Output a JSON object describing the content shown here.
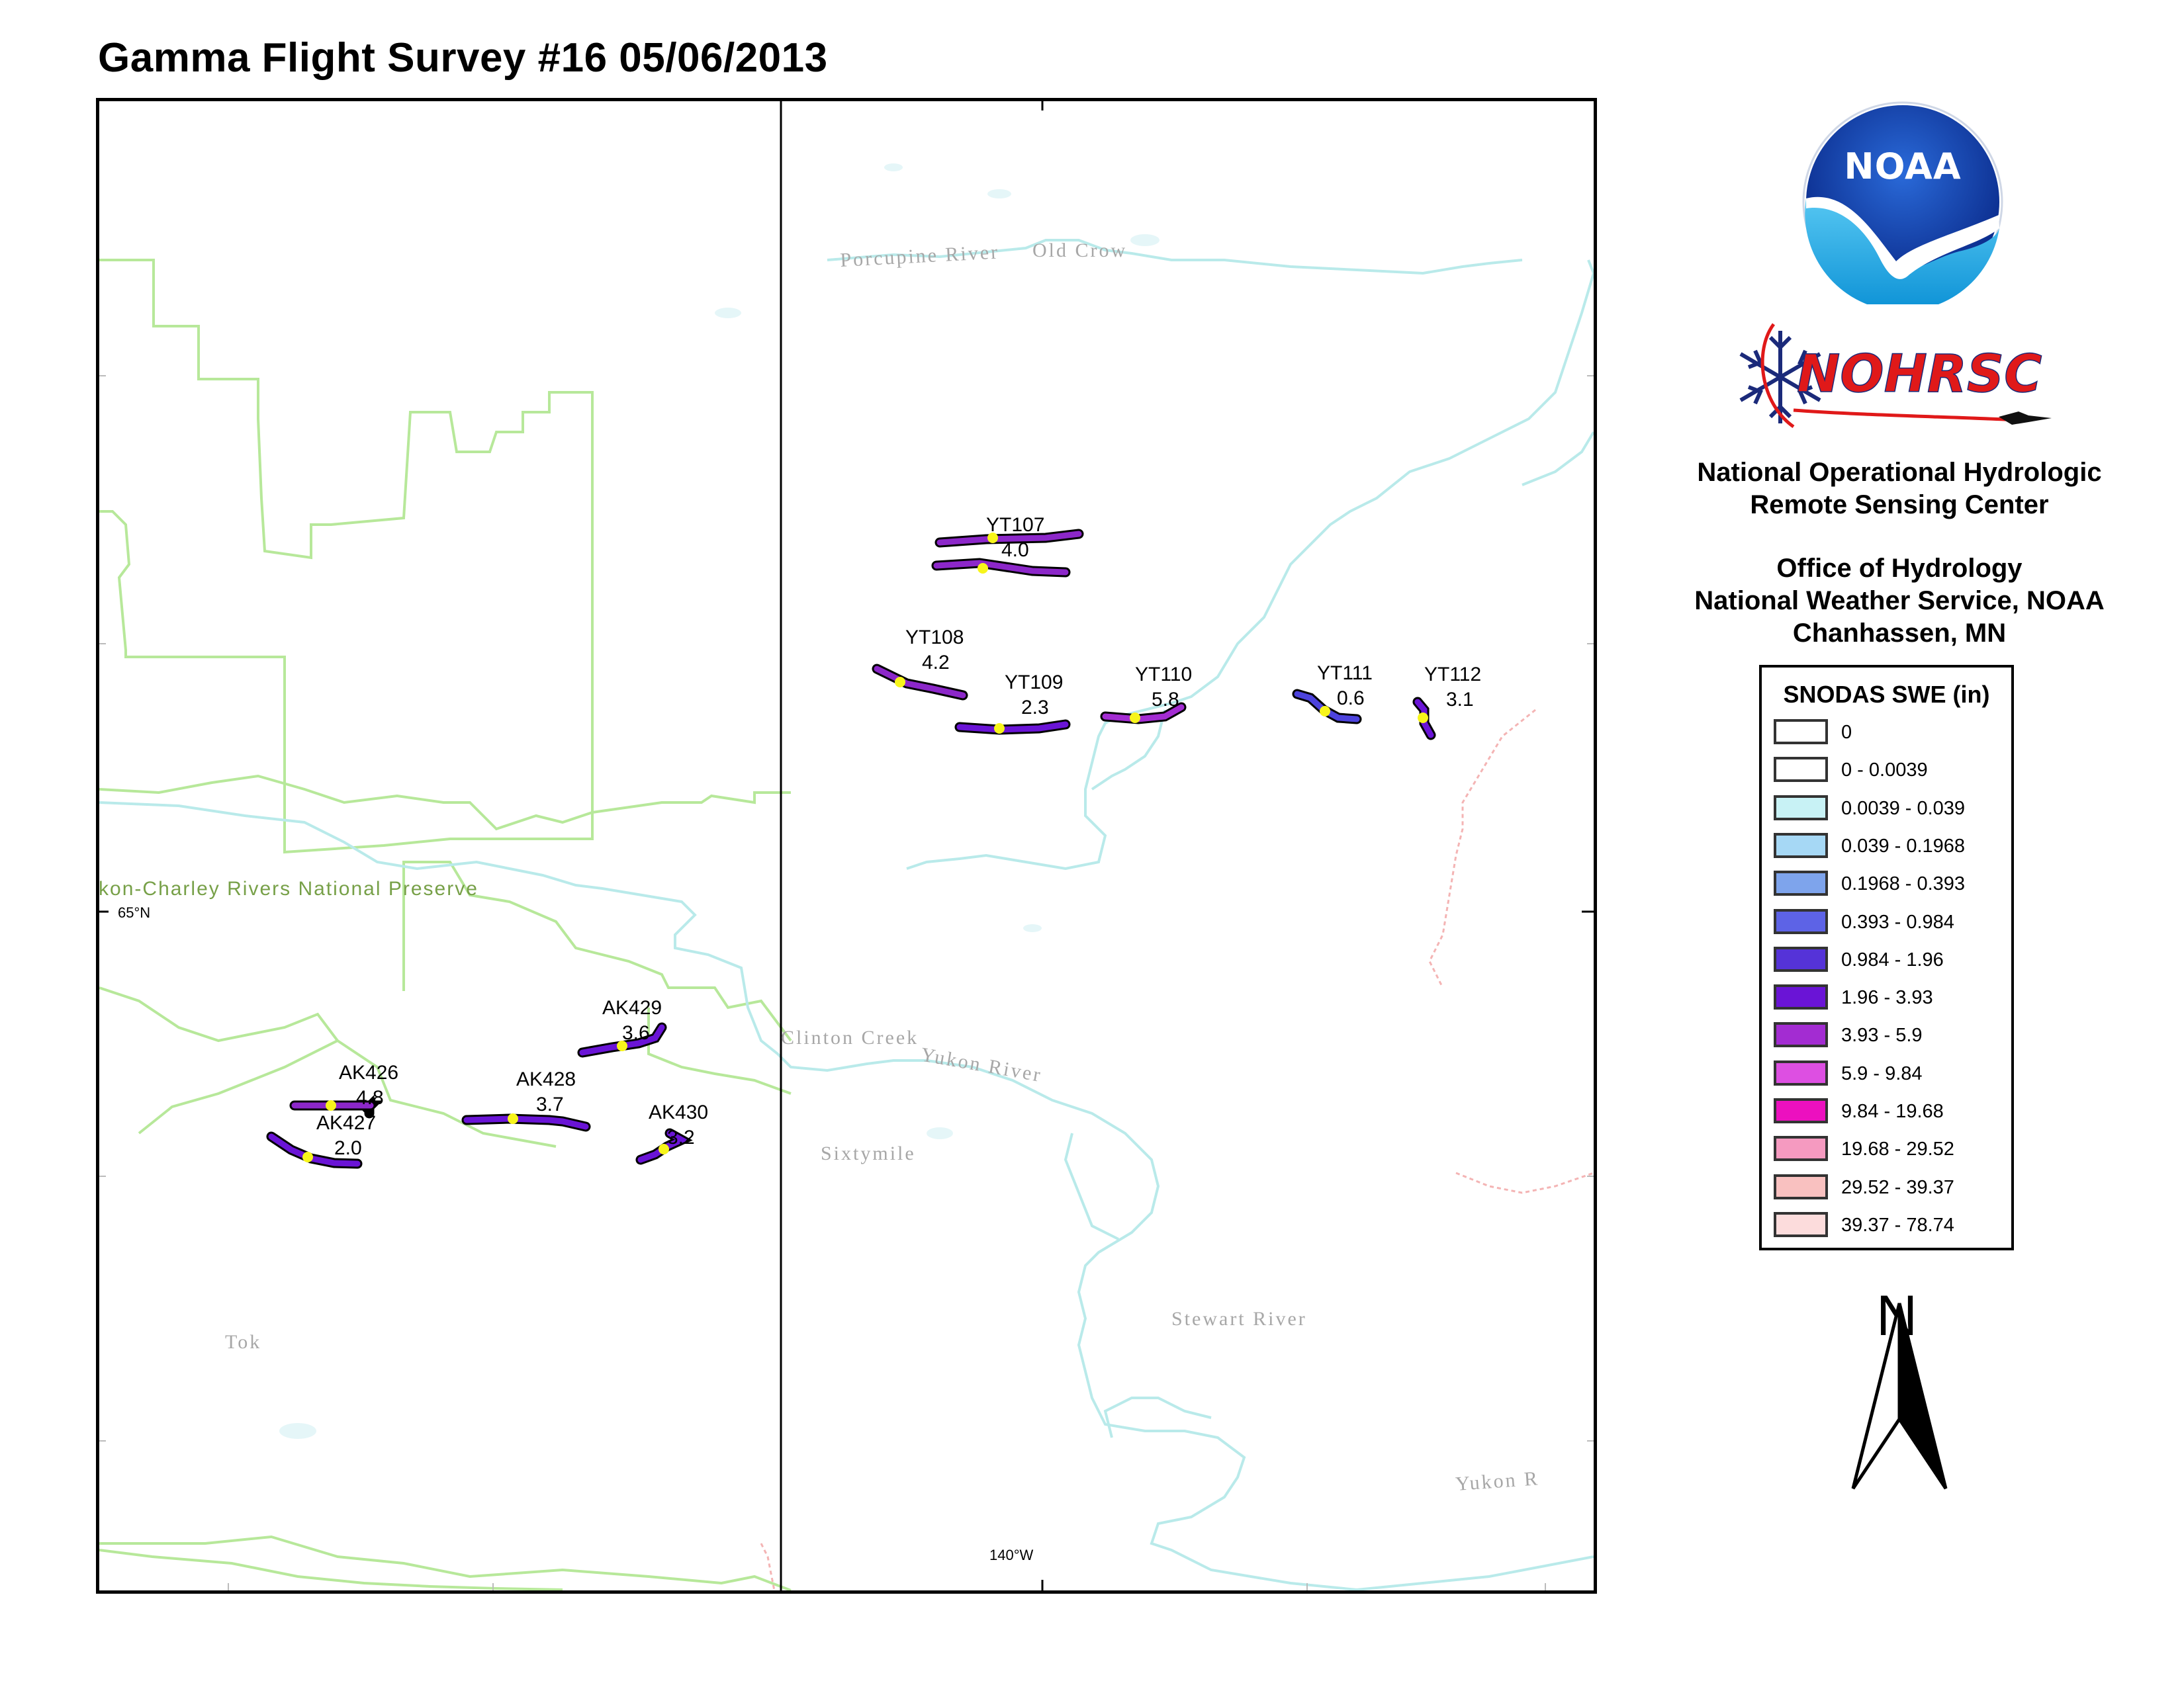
{
  "title": "Gamma Flight Survey #16 05/06/2013",
  "map": {
    "graticule": {
      "lat_label": "65°N",
      "lon_label": "140°W"
    },
    "place_labels": [
      "Old Crow",
      "Porcupine River",
      "Clinton Creek",
      "Yukon River",
      "Sixtymile",
      "Stewart River",
      "Tok",
      "Yukon-Charley Rivers National Preserve",
      "Yukon R"
    ],
    "flight_lines": [
      {
        "id": "YT107",
        "swe": "4.0",
        "color": "#8c27c9"
      },
      {
        "id": "YT108",
        "swe": "4.2",
        "color": "#8c27c9"
      },
      {
        "id": "YT109",
        "swe": "2.3",
        "color": "#6a14d6"
      },
      {
        "id": "YT110",
        "swe": "5.8",
        "color": "#a32cd2"
      },
      {
        "id": "YT111",
        "swe": "0.6",
        "color": "#4d43dd"
      },
      {
        "id": "YT112",
        "swe": "3.1",
        "color": "#6a14d6"
      },
      {
        "id": "AK426",
        "swe": "4.8",
        "color": "#8c27c9"
      },
      {
        "id": "AK427",
        "swe": "2.0",
        "color": "#6a14d6"
      },
      {
        "id": "AK428",
        "swe": "3.7",
        "color": "#6a14d6"
      },
      {
        "id": "AK429",
        "swe": "3.6",
        "color": "#6a14d6"
      },
      {
        "id": "AK430",
        "swe": "3.2",
        "color": "#6a14d6"
      }
    ]
  },
  "logos": {
    "noaa_text": "NOAA",
    "nohrsc_text": "NOHRSC"
  },
  "organization": {
    "line1": "National Operational Hydrologic",
    "line2": "Remote Sensing Center",
    "line3": "Office of Hydrology",
    "line4": "National Weather Service, NOAA",
    "line5": "Chanhassen, MN"
  },
  "legend": {
    "title": "SNODAS SWE (in)",
    "items": [
      {
        "label": "0",
        "color": "#ffffff"
      },
      {
        "label": "0 - 0.0039",
        "color": "#ffffff"
      },
      {
        "label": "0.0039 - 0.039",
        "color": "#c8f2f5"
      },
      {
        "label": "0.039 - 0.1968",
        "color": "#a6d8f5"
      },
      {
        "label": "0.1968 - 0.393",
        "color": "#7ea4ec"
      },
      {
        "label": "0.393 - 0.984",
        "color": "#5d63e6"
      },
      {
        "label": "0.984 - 1.96",
        "color": "#5533d8"
      },
      {
        "label": "1.96 - 3.93",
        "color": "#6a14d6"
      },
      {
        "label": "3.93 - 5.9",
        "color": "#a32cd2"
      },
      {
        "label": "5.9 - 9.84",
        "color": "#dd4fe2"
      },
      {
        "label": "9.84 - 19.68",
        "color": "#ec10bf"
      },
      {
        "label": "19.68 - 29.52",
        "color": "#f59ac0"
      },
      {
        "label": "29.52 - 39.37",
        "color": "#f9c1c0"
      },
      {
        "label": "39.37 - 78.74",
        "color": "#fcdcdc"
      }
    ]
  },
  "north_arrow": {
    "label": "N"
  }
}
